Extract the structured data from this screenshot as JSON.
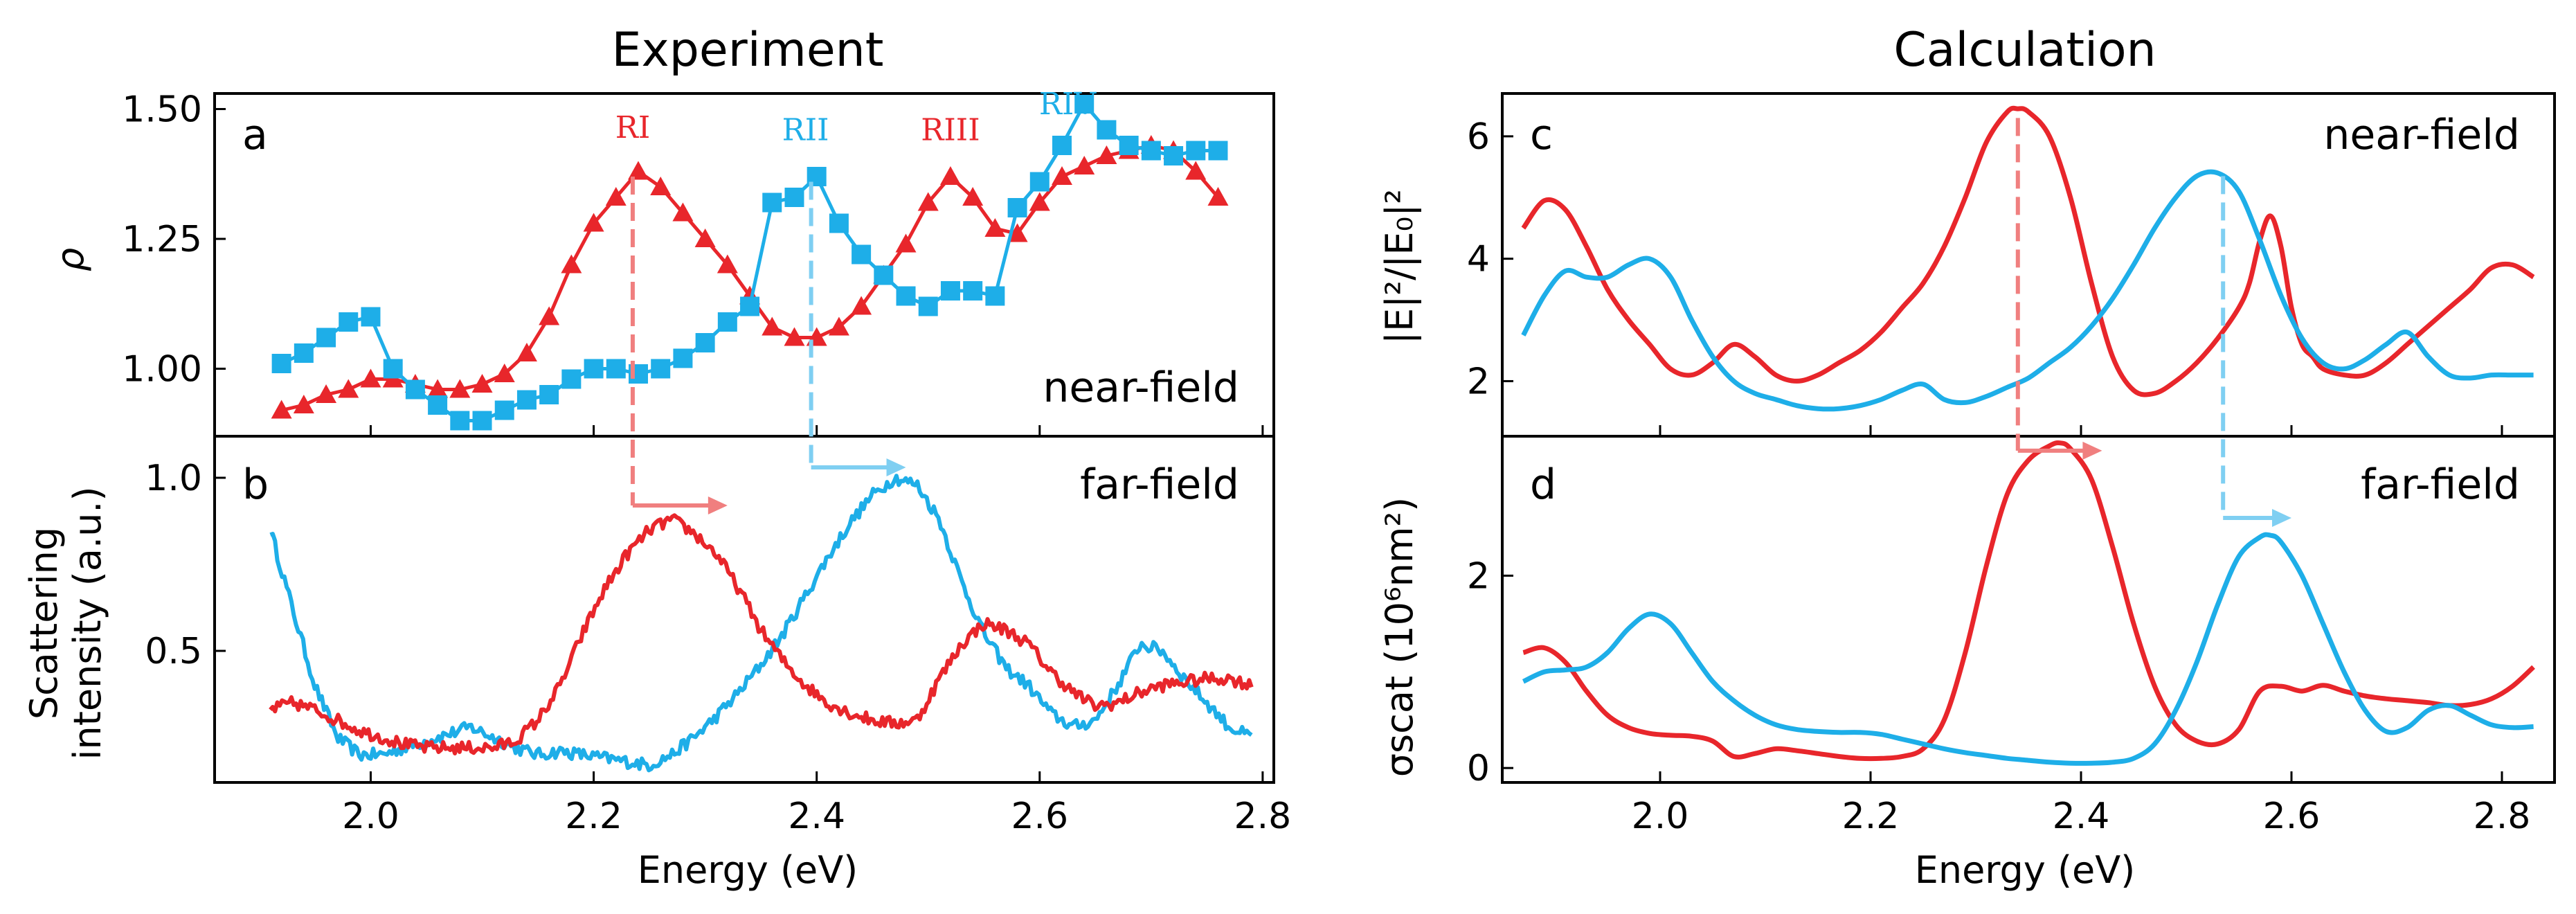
{
  "chart_data": [
    {
      "id": "a",
      "type": "line",
      "title": "Experiment",
      "panel_label": "a",
      "annotation": "near-field",
      "ylabel": "ρ",
      "xlim": [
        1.86,
        2.81
      ],
      "ylim": [
        0.87,
        1.53
      ],
      "yticks": [
        1.0,
        1.25,
        1.5
      ],
      "ytick_labels": [
        "1.00",
        "1.25",
        "1.50"
      ],
      "xticks": [
        2.0,
        2.2,
        2.4,
        2.6,
        2.8
      ],
      "peak_labels": [
        {
          "text": "RI",
          "x": 2.235,
          "y": 1.445,
          "color": "#e8262b"
        },
        {
          "text": "RII",
          "x": 2.39,
          "y": 1.44,
          "color": "#1eaee8"
        },
        {
          "text": "RIII",
          "x": 2.52,
          "y": 1.44,
          "color": "#e8262b"
        },
        {
          "text": "RIV",
          "x": 2.625,
          "y": 1.49,
          "color": "#1eaee8"
        }
      ],
      "series": [
        {
          "name": "red-triangles",
          "color": "#e8262b",
          "marker": "triangle",
          "x": [
            1.92,
            1.94,
            1.96,
            1.98,
            2.0,
            2.02,
            2.04,
            2.06,
            2.08,
            2.1,
            2.12,
            2.14,
            2.16,
            2.18,
            2.2,
            2.22,
            2.24,
            2.26,
            2.28,
            2.3,
            2.32,
            2.34,
            2.36,
            2.38,
            2.4,
            2.42,
            2.44,
            2.46,
            2.48,
            2.5,
            2.52,
            2.54,
            2.56,
            2.58,
            2.6,
            2.62,
            2.64,
            2.66,
            2.68,
            2.7,
            2.72,
            2.74,
            2.76
          ],
          "y": [
            0.92,
            0.93,
            0.95,
            0.96,
            0.98,
            0.98,
            0.97,
            0.96,
            0.96,
            0.97,
            0.99,
            1.03,
            1.1,
            1.2,
            1.28,
            1.33,
            1.38,
            1.35,
            1.3,
            1.25,
            1.2,
            1.14,
            1.08,
            1.06,
            1.06,
            1.08,
            1.12,
            1.18,
            1.24,
            1.32,
            1.37,
            1.33,
            1.27,
            1.26,
            1.32,
            1.37,
            1.39,
            1.41,
            1.42,
            1.43,
            1.42,
            1.38,
            1.33
          ]
        },
        {
          "name": "blue-squares",
          "color": "#1eaee8",
          "marker": "square",
          "x": [
            1.92,
            1.94,
            1.96,
            1.98,
            2.0,
            2.02,
            2.04,
            2.06,
            2.08,
            2.1,
            2.12,
            2.14,
            2.16,
            2.18,
            2.2,
            2.22,
            2.24,
            2.26,
            2.28,
            2.3,
            2.32,
            2.34,
            2.36,
            2.38,
            2.4,
            2.42,
            2.44,
            2.46,
            2.48,
            2.5,
            2.52,
            2.54,
            2.56,
            2.58,
            2.6,
            2.62,
            2.64,
            2.66,
            2.68,
            2.7,
            2.72,
            2.74,
            2.76
          ],
          "y": [
            1.01,
            1.03,
            1.06,
            1.09,
            1.1,
            1.0,
            0.96,
            0.93,
            0.9,
            0.9,
            0.92,
            0.94,
            0.95,
            0.98,
            1.0,
            1.0,
            0.99,
            1.0,
            1.02,
            1.05,
            1.09,
            1.12,
            1.32,
            1.33,
            1.37,
            1.28,
            1.22,
            1.18,
            1.14,
            1.12,
            1.15,
            1.15,
            1.14,
            1.31,
            1.36,
            1.43,
            1.51,
            1.46,
            1.43,
            1.42,
            1.41,
            1.42,
            1.42
          ]
        }
      ]
    },
    {
      "id": "b",
      "type": "line",
      "panel_label": "b",
      "annotation": "far-field",
      "ylabel": [
        "Scattering",
        "intensity (a.u.)"
      ],
      "xlabel": "Energy (eV)",
      "xlim": [
        1.86,
        2.81
      ],
      "ylim": [
        0.12,
        1.12
      ],
      "yticks": [
        0.5,
        1.0
      ],
      "ytick_labels": [
        "0.5",
        "1.0"
      ],
      "xticks": [
        2.0,
        2.2,
        2.4,
        2.6,
        2.8
      ],
      "xtick_labels": [
        "2.0",
        "2.2",
        "2.4",
        "2.6",
        "2.8"
      ],
      "series": [
        {
          "name": "blue-scattering",
          "color": "#1eaee8",
          "noise": 0.018,
          "x": [
            1.91,
            1.93,
            1.95,
            1.97,
            1.99,
            2.01,
            2.03,
            2.05,
            2.07,
            2.09,
            2.11,
            2.13,
            2.15,
            2.17,
            2.19,
            2.21,
            2.23,
            2.25,
            2.27,
            2.29,
            2.31,
            2.33,
            2.35,
            2.37,
            2.39,
            2.41,
            2.43,
            2.45,
            2.47,
            2.49,
            2.51,
            2.53,
            2.55,
            2.57,
            2.59,
            2.61,
            2.63,
            2.65,
            2.67,
            2.69,
            2.71,
            2.73,
            2.75,
            2.77,
            2.79
          ],
          "y": [
            0.85,
            0.62,
            0.4,
            0.25,
            0.2,
            0.2,
            0.22,
            0.24,
            0.26,
            0.28,
            0.25,
            0.22,
            0.2,
            0.21,
            0.2,
            0.19,
            0.18,
            0.17,
            0.2,
            0.25,
            0.31,
            0.38,
            0.46,
            0.55,
            0.66,
            0.77,
            0.87,
            0.95,
            1.0,
            0.98,
            0.88,
            0.7,
            0.55,
            0.45,
            0.4,
            0.32,
            0.28,
            0.3,
            0.4,
            0.52,
            0.5,
            0.42,
            0.35,
            0.28,
            0.25
          ]
        },
        {
          "name": "red-scattering",
          "color": "#e8262b",
          "noise": 0.018,
          "x": [
            1.91,
            1.93,
            1.95,
            1.97,
            1.99,
            2.01,
            2.03,
            2.05,
            2.07,
            2.09,
            2.11,
            2.13,
            2.15,
            2.17,
            2.19,
            2.21,
            2.23,
            2.25,
            2.27,
            2.29,
            2.31,
            2.33,
            2.35,
            2.37,
            2.39,
            2.41,
            2.43,
            2.45,
            2.47,
            2.49,
            2.51,
            2.53,
            2.55,
            2.57,
            2.59,
            2.61,
            2.63,
            2.65,
            2.67,
            2.69,
            2.71,
            2.73,
            2.75,
            2.77,
            2.79
          ],
          "y": [
            0.33,
            0.35,
            0.33,
            0.3,
            0.27,
            0.25,
            0.23,
            0.22,
            0.22,
            0.22,
            0.22,
            0.24,
            0.3,
            0.4,
            0.55,
            0.68,
            0.78,
            0.85,
            0.88,
            0.84,
            0.78,
            0.68,
            0.56,
            0.47,
            0.4,
            0.35,
            0.32,
            0.3,
            0.29,
            0.3,
            0.42,
            0.52,
            0.58,
            0.56,
            0.52,
            0.44,
            0.38,
            0.34,
            0.35,
            0.38,
            0.4,
            0.41,
            0.42,
            0.42,
            0.4
          ]
        }
      ]
    },
    {
      "id": "c",
      "type": "line",
      "title": "Calculation",
      "panel_label": "c",
      "annotation": "near-field",
      "ylabel": "|E|²/|E₀|²",
      "xlim": [
        1.85,
        2.85
      ],
      "ylim": [
        1.1,
        6.7
      ],
      "yticks": [
        2,
        4,
        6
      ],
      "ytick_labels": [
        "2",
        "4",
        "6"
      ],
      "xticks": [
        2.0,
        2.2,
        2.4,
        2.6,
        2.8
      ],
      "series": [
        {
          "name": "red-near-field",
          "color": "#e8262b",
          "x": [
            1.87,
            1.89,
            1.91,
            1.93,
            1.95,
            1.97,
            1.99,
            2.01,
            2.03,
            2.05,
            2.07,
            2.09,
            2.11,
            2.13,
            2.15,
            2.17,
            2.19,
            2.21,
            2.23,
            2.25,
            2.27,
            2.29,
            2.31,
            2.33,
            2.34,
            2.35,
            2.37,
            2.39,
            2.41,
            2.43,
            2.45,
            2.47,
            2.49,
            2.51,
            2.53,
            2.55,
            2.56,
            2.57,
            2.58,
            2.59,
            2.6,
            2.61,
            2.62,
            2.63,
            2.65,
            2.67,
            2.69,
            2.71,
            2.73,
            2.75,
            2.77,
            2.79,
            2.81,
            2.83
          ],
          "y": [
            4.5,
            4.95,
            4.8,
            4.2,
            3.5,
            3.0,
            2.6,
            2.2,
            2.1,
            2.3,
            2.6,
            2.4,
            2.1,
            2.0,
            2.1,
            2.3,
            2.5,
            2.8,
            3.2,
            3.6,
            4.2,
            5.0,
            5.9,
            6.4,
            6.45,
            6.4,
            6.0,
            5.0,
            3.6,
            2.4,
            1.85,
            1.8,
            2.0,
            2.3,
            2.7,
            3.2,
            3.6,
            4.3,
            4.7,
            4.2,
            3.2,
            2.6,
            2.4,
            2.2,
            2.1,
            2.1,
            2.3,
            2.6,
            2.9,
            3.2,
            3.5,
            3.85,
            3.9,
            3.7
          ]
        },
        {
          "name": "blue-near-field",
          "color": "#1eaee8",
          "x": [
            1.87,
            1.89,
            1.91,
            1.93,
            1.95,
            1.97,
            1.99,
            2.01,
            2.03,
            2.05,
            2.07,
            2.09,
            2.11,
            2.13,
            2.15,
            2.17,
            2.19,
            2.21,
            2.23,
            2.25,
            2.27,
            2.29,
            2.31,
            2.33,
            2.35,
            2.37,
            2.39,
            2.41,
            2.43,
            2.45,
            2.47,
            2.49,
            2.51,
            2.53,
            2.55,
            2.57,
            2.59,
            2.61,
            2.63,
            2.65,
            2.67,
            2.69,
            2.71,
            2.73,
            2.75,
            2.77,
            2.79,
            2.81,
            2.83
          ],
          "y": [
            2.75,
            3.4,
            3.8,
            3.7,
            3.7,
            3.9,
            4.0,
            3.7,
            3.0,
            2.4,
            2.0,
            1.8,
            1.7,
            1.6,
            1.55,
            1.55,
            1.6,
            1.7,
            1.85,
            1.95,
            1.7,
            1.65,
            1.75,
            1.9,
            2.05,
            2.3,
            2.55,
            2.9,
            3.35,
            3.9,
            4.5,
            5.0,
            5.35,
            5.4,
            5.1,
            4.3,
            3.4,
            2.7,
            2.3,
            2.2,
            2.35,
            2.6,
            2.8,
            2.4,
            2.1,
            2.05,
            2.1,
            2.1,
            2.1
          ]
        }
      ]
    },
    {
      "id": "d",
      "type": "line",
      "panel_label": "d",
      "annotation": "far-field",
      "ylabel": "σscat (10⁶nm²)",
      "xlabel": "Energy (eV)",
      "xlim": [
        1.85,
        2.85
      ],
      "ylim": [
        -0.15,
        3.45
      ],
      "yticks": [
        0,
        2
      ],
      "ytick_labels": [
        "0",
        "2"
      ],
      "xticks": [
        2.0,
        2.2,
        2.4,
        2.6,
        2.8
      ],
      "xtick_labels": [
        "2.0",
        "2.2",
        "2.4",
        "2.6",
        "2.8"
      ],
      "series": [
        {
          "name": "red-scattering-calc",
          "color": "#e8262b",
          "x": [
            1.87,
            1.89,
            1.91,
            1.93,
            1.95,
            1.97,
            1.99,
            2.01,
            2.03,
            2.05,
            2.07,
            2.09,
            2.11,
            2.13,
            2.15,
            2.17,
            2.19,
            2.21,
            2.23,
            2.25,
            2.27,
            2.29,
            2.31,
            2.33,
            2.35,
            2.37,
            2.38,
            2.39,
            2.41,
            2.43,
            2.45,
            2.47,
            2.49,
            2.51,
            2.53,
            2.55,
            2.57,
            2.59,
            2.61,
            2.63,
            2.65,
            2.67,
            2.69,
            2.71,
            2.73,
            2.75,
            2.77,
            2.79,
            2.81,
            2.83
          ],
          "y": [
            1.2,
            1.25,
            1.1,
            0.8,
            0.55,
            0.42,
            0.36,
            0.34,
            0.33,
            0.28,
            0.12,
            0.15,
            0.2,
            0.18,
            0.15,
            0.12,
            0.1,
            0.1,
            0.12,
            0.2,
            0.5,
            1.2,
            2.1,
            2.85,
            3.2,
            3.35,
            3.38,
            3.32,
            3.0,
            2.3,
            1.5,
            0.85,
            0.45,
            0.28,
            0.25,
            0.4,
            0.8,
            0.85,
            0.8,
            0.86,
            0.8,
            0.75,
            0.72,
            0.7,
            0.68,
            0.65,
            0.66,
            0.72,
            0.85,
            1.05
          ]
        },
        {
          "name": "blue-scattering-calc",
          "color": "#1eaee8",
          "x": [
            1.87,
            1.89,
            1.91,
            1.93,
            1.95,
            1.97,
            1.99,
            2.01,
            2.03,
            2.05,
            2.07,
            2.09,
            2.11,
            2.13,
            2.15,
            2.17,
            2.19,
            2.21,
            2.23,
            2.25,
            2.27,
            2.29,
            2.31,
            2.33,
            2.35,
            2.37,
            2.39,
            2.41,
            2.43,
            2.45,
            2.47,
            2.49,
            2.51,
            2.53,
            2.55,
            2.57,
            2.58,
            2.59,
            2.61,
            2.63,
            2.65,
            2.67,
            2.69,
            2.71,
            2.73,
            2.75,
            2.77,
            2.79,
            2.81,
            2.83
          ],
          "y": [
            0.9,
            1.0,
            1.02,
            1.05,
            1.2,
            1.45,
            1.6,
            1.5,
            1.2,
            0.9,
            0.7,
            0.55,
            0.45,
            0.4,
            0.38,
            0.37,
            0.37,
            0.35,
            0.3,
            0.25,
            0.2,
            0.16,
            0.13,
            0.1,
            0.08,
            0.06,
            0.05,
            0.05,
            0.06,
            0.1,
            0.25,
            0.6,
            1.1,
            1.7,
            2.2,
            2.4,
            2.42,
            2.35,
            2.0,
            1.5,
            1.0,
            0.6,
            0.38,
            0.42,
            0.6,
            0.65,
            0.55,
            0.45,
            0.42,
            0.43
          ]
        }
      ]
    }
  ],
  "arrows": [
    {
      "panel_from": "a",
      "panel_to": "b",
      "x": 2.235,
      "y_from": 1.37,
      "x_to": 2.32,
      "y_to": 0.92,
      "color": "#f07f7f"
    },
    {
      "panel_from": "a",
      "panel_to": "b",
      "x": 2.395,
      "y_from": 1.36,
      "x_to": 2.48,
      "y_to": 1.03,
      "color": "#7fcff2"
    },
    {
      "panel_from": "c",
      "panel_to": "d",
      "x": 2.34,
      "y_from": 6.3,
      "x_to": 2.42,
      "y_to": 3.3,
      "color": "#f07f7f"
    },
    {
      "panel_from": "c",
      "panel_to": "d",
      "x": 2.535,
      "y_from": 5.35,
      "x_to": 2.6,
      "y_to": 2.6,
      "color": "#7fcff2"
    }
  ]
}
